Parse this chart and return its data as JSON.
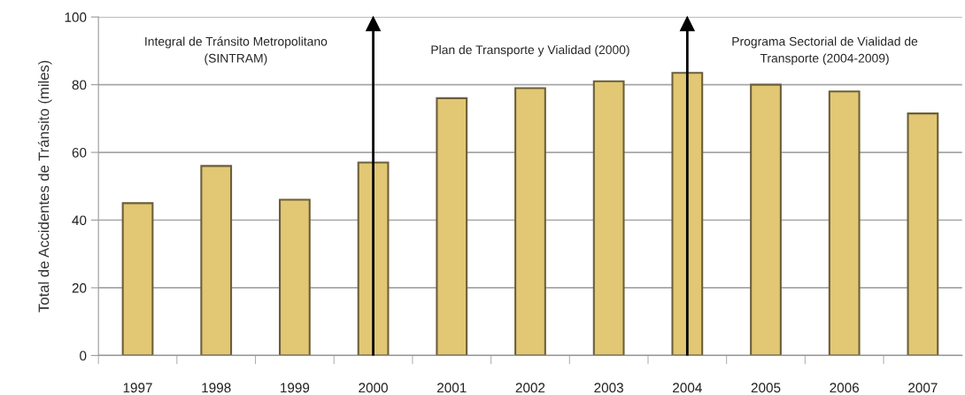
{
  "chart_data": {
    "type": "bar",
    "ylabel": "Total de Accidentes de Tránsito (miles)",
    "categories": [
      "1997",
      "1998",
      "1999",
      "2000",
      "2001",
      "2002",
      "2003",
      "2004",
      "2005",
      "2006",
      "2007"
    ],
    "values": [
      45,
      56,
      46,
      57,
      76,
      79,
      81,
      83.5,
      80,
      78,
      71.5
    ],
    "color": "#e2c774",
    "ylim": [
      0,
      100
    ],
    "yticks": [
      0,
      20,
      40,
      60,
      80,
      100
    ],
    "grid": "y",
    "ref_lines": [
      {
        "axis": "x",
        "value": "2000"
      },
      {
        "axis": "x",
        "value": "2004"
      }
    ],
    "annotations": [
      "Integral de Tránsito Metropolitano\n(SINTRAM)",
      "Plan de Transporte y Vialidad (2000)",
      "Programa Sectorial de Vialidad de\nTransporte (2004-2009)"
    ]
  }
}
